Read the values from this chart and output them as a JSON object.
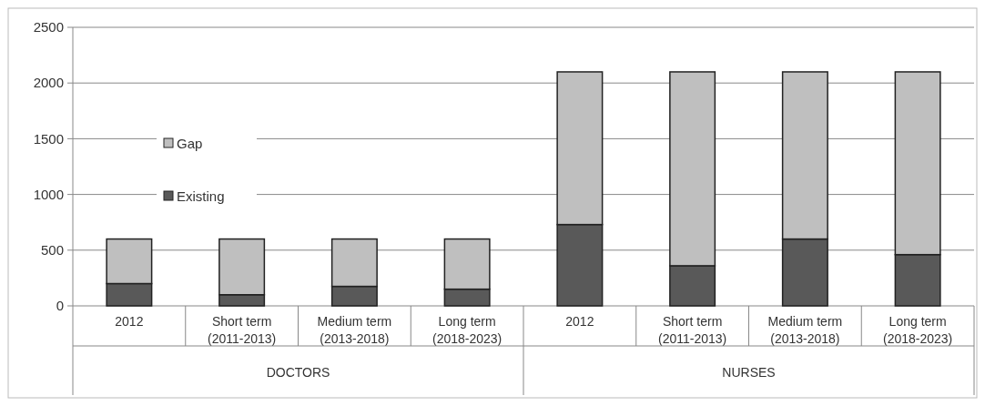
{
  "chart_data": {
    "type": "bar",
    "stacked": true,
    "categories": [
      "2012",
      "Short term\n(2011-2013)",
      "Medium term\n(2013-2018)",
      "Long term\n(2018-2023)",
      "2012",
      "Short term\n(2011-2013)",
      "Medium term\n(2013-2018)",
      "Long term\n(2018-2023)"
    ],
    "series": [
      {
        "name": "Existing",
        "color": "#595959",
        "values": [
          200,
          100,
          175,
          150,
          730,
          360,
          600,
          460
        ]
      },
      {
        "name": "Gap",
        "color": "#bfbfbf",
        "values": [
          400,
          500,
          425,
          450,
          1370,
          1740,
          1500,
          1640
        ]
      }
    ],
    "ylim": [
      0,
      2500
    ],
    "yticks": [
      0,
      500,
      1000,
      1500,
      2000,
      2500
    ],
    "grid": "y",
    "legend": "left",
    "annotations": [
      "DOCTORS",
      "NURSES"
    ]
  }
}
